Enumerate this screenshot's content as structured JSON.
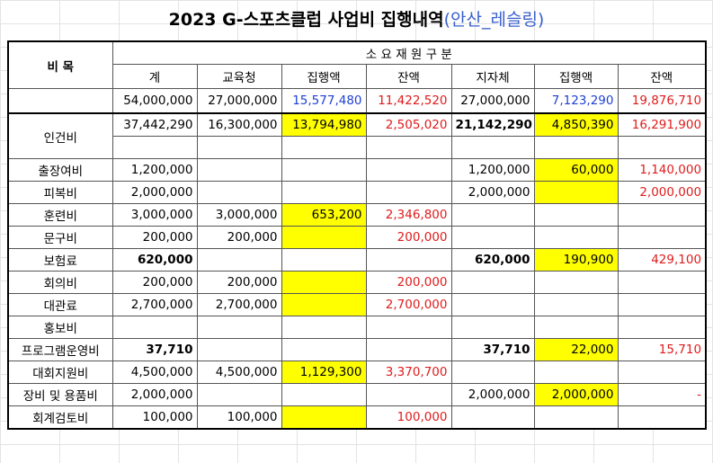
{
  "title": {
    "main": "2023 G-스포츠클럽 사업비 집행내역",
    "sub": "(안산_레슬링)"
  },
  "header": {
    "item_label": "비 목",
    "group_label": "소 요 재 원 구 분",
    "columns": [
      "계",
      "교육청",
      "집행액",
      "잔액",
      "지자체",
      "집행액",
      "잔액"
    ]
  },
  "totals": [
    "54,000,000",
    "27,000,000",
    "15,577,480",
    "11,422,520",
    "27,000,000",
    "7,123,290",
    "19,876,710"
  ],
  "rows": [
    {
      "name": "인건비",
      "values": [
        "37,442,290",
        "16,300,000",
        "13,794,980",
        "2,505,020",
        "21,142,290",
        "4,850,390",
        "16,291,900"
      ]
    },
    {
      "name": "출장여비",
      "values": [
        "1,200,000",
        "",
        "",
        "",
        "1,200,000",
        "60,000",
        "1,140,000"
      ]
    },
    {
      "name": "피복비",
      "values": [
        "2,000,000",
        "",
        "",
        "",
        "2,000,000",
        "",
        "2,000,000"
      ]
    },
    {
      "name": "훈련비",
      "values": [
        "3,000,000",
        "3,000,000",
        "653,200",
        "2,346,800",
        "",
        "",
        ""
      ]
    },
    {
      "name": "문구비",
      "values": [
        "200,000",
        "200,000",
        "",
        "200,000",
        "",
        "",
        ""
      ]
    },
    {
      "name": "보험료",
      "values": [
        "620,000",
        "",
        "",
        "",
        "620,000",
        "190,900",
        "429,100"
      ]
    },
    {
      "name": "회의비",
      "values": [
        "200,000",
        "200,000",
        "",
        "200,000",
        "",
        "",
        ""
      ]
    },
    {
      "name": "대관료",
      "values": [
        "2,700,000",
        "2,700,000",
        "",
        "2,700,000",
        "",
        "",
        ""
      ]
    },
    {
      "name": "홍보비",
      "values": [
        "",
        "",
        "",
        "",
        "",
        "",
        ""
      ]
    },
    {
      "name": "프로그램운영비",
      "values": [
        "37,710",
        "",
        "",
        "",
        "37,710",
        "22,000",
        "15,710"
      ]
    },
    {
      "name": "대회지원비",
      "values": [
        "4,500,000",
        "4,500,000",
        "1,129,300",
        "3,370,700",
        "",
        "",
        ""
      ]
    },
    {
      "name": "장비 및 용품비",
      "values": [
        "2,000,000",
        "",
        "",
        "",
        "2,000,000",
        "2,000,000",
        "-"
      ]
    },
    {
      "name": "회계검토비",
      "values": [
        "100,000",
        "100,000",
        "",
        "100,000",
        "",
        "",
        ""
      ]
    }
  ],
  "colors": {
    "highlight": "#ffff00",
    "executed": "#1f3fd6",
    "balance": "#e01b1b",
    "subtitle": "#3a5fcd"
  }
}
